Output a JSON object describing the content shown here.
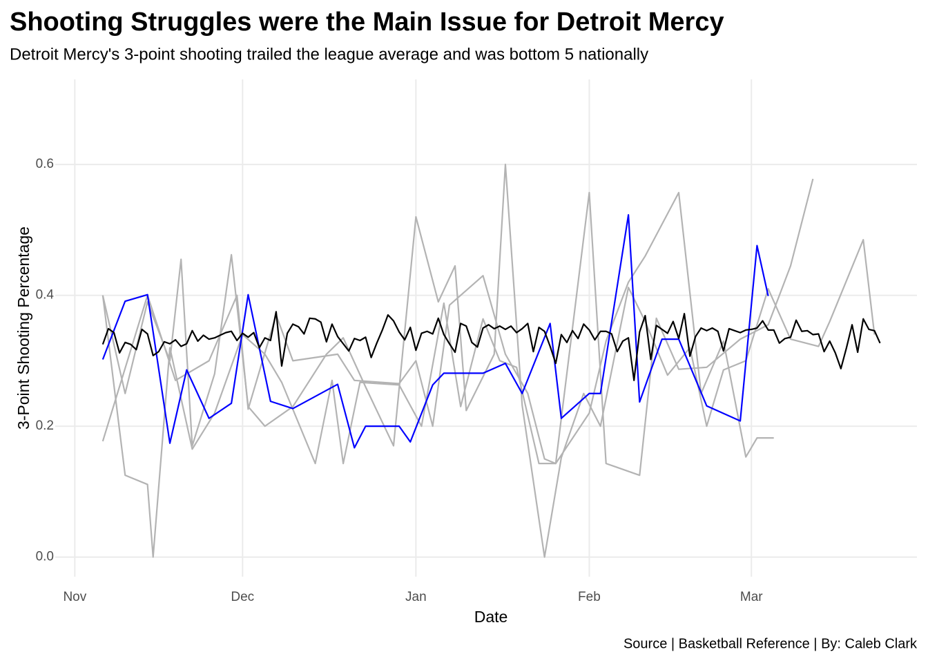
{
  "chart_data": {
    "type": "line",
    "title": "Shooting Struggles were the Main Issue for Detroit Mercy",
    "subtitle": "Detroit Mercy's 3-point shooting trailed the league average and was bottom 5 nationally",
    "x_label": "Date",
    "y_label": "3-Point Shooting Percentage",
    "caption": "Source | Basketball Reference | By: Caleb Clark",
    "xlim": [
      -3.5,
      150.6
    ],
    "ylim": [
      -0.03,
      0.73
    ],
    "xticks": [
      {
        "value": 0,
        "label": "Nov"
      },
      {
        "value": 30,
        "label": "Dec"
      },
      {
        "value": 61,
        "label": "Jan"
      },
      {
        "value": 92,
        "label": "Feb"
      },
      {
        "value": 121,
        "label": "Mar"
      }
    ],
    "yticks": [
      {
        "value": 0,
        "label": "0.0"
      },
      0.2,
      0.4,
      0.6
    ],
    "grid": true,
    "series": [
      {
        "color": "#b3b3b3",
        "x": [
          5,
          9,
          13,
          17,
          19,
          21,
          25,
          28,
          31,
          34,
          39,
          45,
          48,
          52,
          57,
          61,
          65,
          68,
          70,
          75,
          77,
          80,
          84,
          87,
          91,
          94,
          99,
          102,
          106,
          110,
          113,
          116,
          120,
          124,
          128,
          133,
          135,
          141,
          143
        ],
        "values": [
          0.4,
          0.25,
          0.39,
          0.3,
          0.455,
          0.17,
          0.28,
          0.462,
          0.23,
          0.2,
          0.23,
          0.31,
          0.335,
          0.26,
          0.17,
          0.52,
          0.39,
          0.445,
          0.224,
          0.31,
          0.6,
          0.232,
          0.0,
          0.152,
          0.25,
          0.2,
          0.412,
          0.36,
          0.278,
          0.32,
          0.2,
          0.286,
          0.3,
          0.41,
          0.333,
          0.322,
          0.36,
          0.485,
          0.34
        ]
      },
      {
        "color": "#b3b3b3",
        "x": [
          5,
          13,
          18,
          24,
          29,
          31,
          36,
          39,
          47,
          50,
          58,
          61,
          64,
          67,
          73,
          77,
          81,
          84,
          86,
          92,
          95,
          99,
          102,
          108,
          112,
          116,
          120,
          122,
          125
        ],
        "values": [
          0.177,
          0.4,
          0.27,
          0.3,
          0.4,
          0.226,
          0.37,
          0.3,
          0.31,
          0.27,
          0.265,
          0.3,
          0.2,
          0.385,
          0.43,
          0.31,
          0.25,
          0.15,
          0.143,
          0.22,
          0.33,
          0.42,
          0.46,
          0.557,
          0.25,
          0.33,
          0.153,
          0.182,
          0.182
        ]
      },
      {
        "color": "#b3b3b3",
        "x": [
          5,
          9,
          13,
          14,
          17,
          21,
          25,
          30,
          34,
          37,
          43,
          46,
          48,
          51,
          58,
          62,
          66,
          69,
          73,
          76,
          79,
          83,
          86,
          92,
          95,
          101,
          104,
          108,
          113,
          119,
          124,
          128,
          132
        ],
        "values": [
          0.4,
          0.125,
          0.111,
          0.0,
          0.32,
          0.165,
          0.22,
          0.34,
          0.31,
          0.267,
          0.143,
          0.27,
          0.143,
          0.267,
          0.263,
          0.2,
          0.388,
          0.23,
          0.364,
          0.3,
          0.29,
          0.143,
          0.143,
          0.557,
          0.143,
          0.125,
          0.365,
          0.287,
          0.29,
          0.333,
          0.355,
          0.445,
          0.578
        ]
      },
      {
        "color": "#0000ff",
        "x": [
          5,
          9,
          13,
          17,
          20,
          24,
          28,
          31,
          35,
          39,
          47,
          50,
          52,
          58,
          60,
          64,
          66,
          73,
          77,
          80,
          85,
          87,
          92,
          94,
          99,
          101,
          105,
          108,
          113,
          119,
          122,
          124
        ],
        "values": [
          0.302,
          0.391,
          0.401,
          0.174,
          0.286,
          0.212,
          0.235,
          0.401,
          0.238,
          0.227,
          0.264,
          0.167,
          0.2,
          0.2,
          0.176,
          0.263,
          0.281,
          0.281,
          0.296,
          0.25,
          0.357,
          0.212,
          0.25,
          0.25,
          0.523,
          0.237,
          0.333,
          0.333,
          0.231,
          0.208,
          0.476,
          0.399
        ]
      },
      {
        "color": "#000000",
        "x": [
          5,
          6,
          7,
          8,
          9,
          10,
          11,
          12,
          13,
          14,
          15,
          16,
          17,
          18,
          19,
          20,
          21,
          22,
          23,
          24,
          25,
          26,
          27,
          28,
          29,
          30,
          31,
          32,
          33,
          34,
          35,
          36,
          37,
          38,
          39,
          40,
          41,
          42,
          43,
          44,
          45,
          46,
          47,
          48,
          49,
          50,
          51,
          52,
          53,
          54,
          55,
          56,
          57,
          58,
          59,
          60,
          61,
          62,
          63,
          64,
          65,
          66,
          67,
          68,
          69,
          70,
          71,
          72,
          73,
          74,
          75,
          76,
          77,
          78,
          79,
          80,
          81,
          82,
          83,
          84,
          85,
          86,
          87,
          88,
          89,
          90,
          91,
          92,
          93,
          94,
          95,
          96,
          97,
          98,
          99,
          100,
          101,
          102,
          103,
          104,
          105,
          106,
          107,
          108,
          109,
          110,
          111,
          112,
          113,
          114,
          115,
          116,
          117,
          118,
          119,
          120,
          121,
          122,
          123,
          124,
          125,
          126,
          127,
          128,
          129,
          130,
          131,
          132,
          133,
          134,
          135,
          136,
          137,
          138,
          139,
          140,
          141,
          142,
          143,
          144
        ],
        "values": [
          0.325,
          0.349,
          0.343,
          0.312,
          0.328,
          0.325,
          0.317,
          0.348,
          0.341,
          0.308,
          0.314,
          0.329,
          0.326,
          0.332,
          0.322,
          0.326,
          0.346,
          0.33,
          0.339,
          0.333,
          0.335,
          0.339,
          0.343,
          0.345,
          0.331,
          0.342,
          0.336,
          0.343,
          0.32,
          0.335,
          0.331,
          0.375,
          0.292,
          0.342,
          0.356,
          0.352,
          0.341,
          0.365,
          0.364,
          0.359,
          0.329,
          0.356,
          0.337,
          0.326,
          0.315,
          0.334,
          0.331,
          0.336,
          0.305,
          0.327,
          0.347,
          0.37,
          0.361,
          0.344,
          0.332,
          0.351,
          0.316,
          0.342,
          0.345,
          0.341,
          0.365,
          0.34,
          0.326,
          0.313,
          0.357,
          0.353,
          0.328,
          0.321,
          0.35,
          0.355,
          0.349,
          0.353,
          0.348,
          0.353,
          0.343,
          0.349,
          0.357,
          0.314,
          0.351,
          0.345,
          0.322,
          0.296,
          0.34,
          0.328,
          0.346,
          0.334,
          0.356,
          0.347,
          0.332,
          0.345,
          0.345,
          0.341,
          0.314,
          0.33,
          0.335,
          0.27,
          0.344,
          0.369,
          0.302,
          0.354,
          0.348,
          0.342,
          0.36,
          0.334,
          0.372,
          0.307,
          0.337,
          0.35,
          0.346,
          0.35,
          0.345,
          0.315,
          0.349,
          0.346,
          0.343,
          0.347,
          0.348,
          0.35,
          0.361,
          0.347,
          0.347,
          0.327,
          0.334,
          0.336,
          0.362,
          0.345,
          0.346,
          0.34,
          0.341,
          0.314,
          0.33,
          0.312,
          0.288,
          0.32,
          0.355,
          0.313,
          0.364,
          0.348,
          0.346,
          0.327
        ]
      }
    ]
  }
}
